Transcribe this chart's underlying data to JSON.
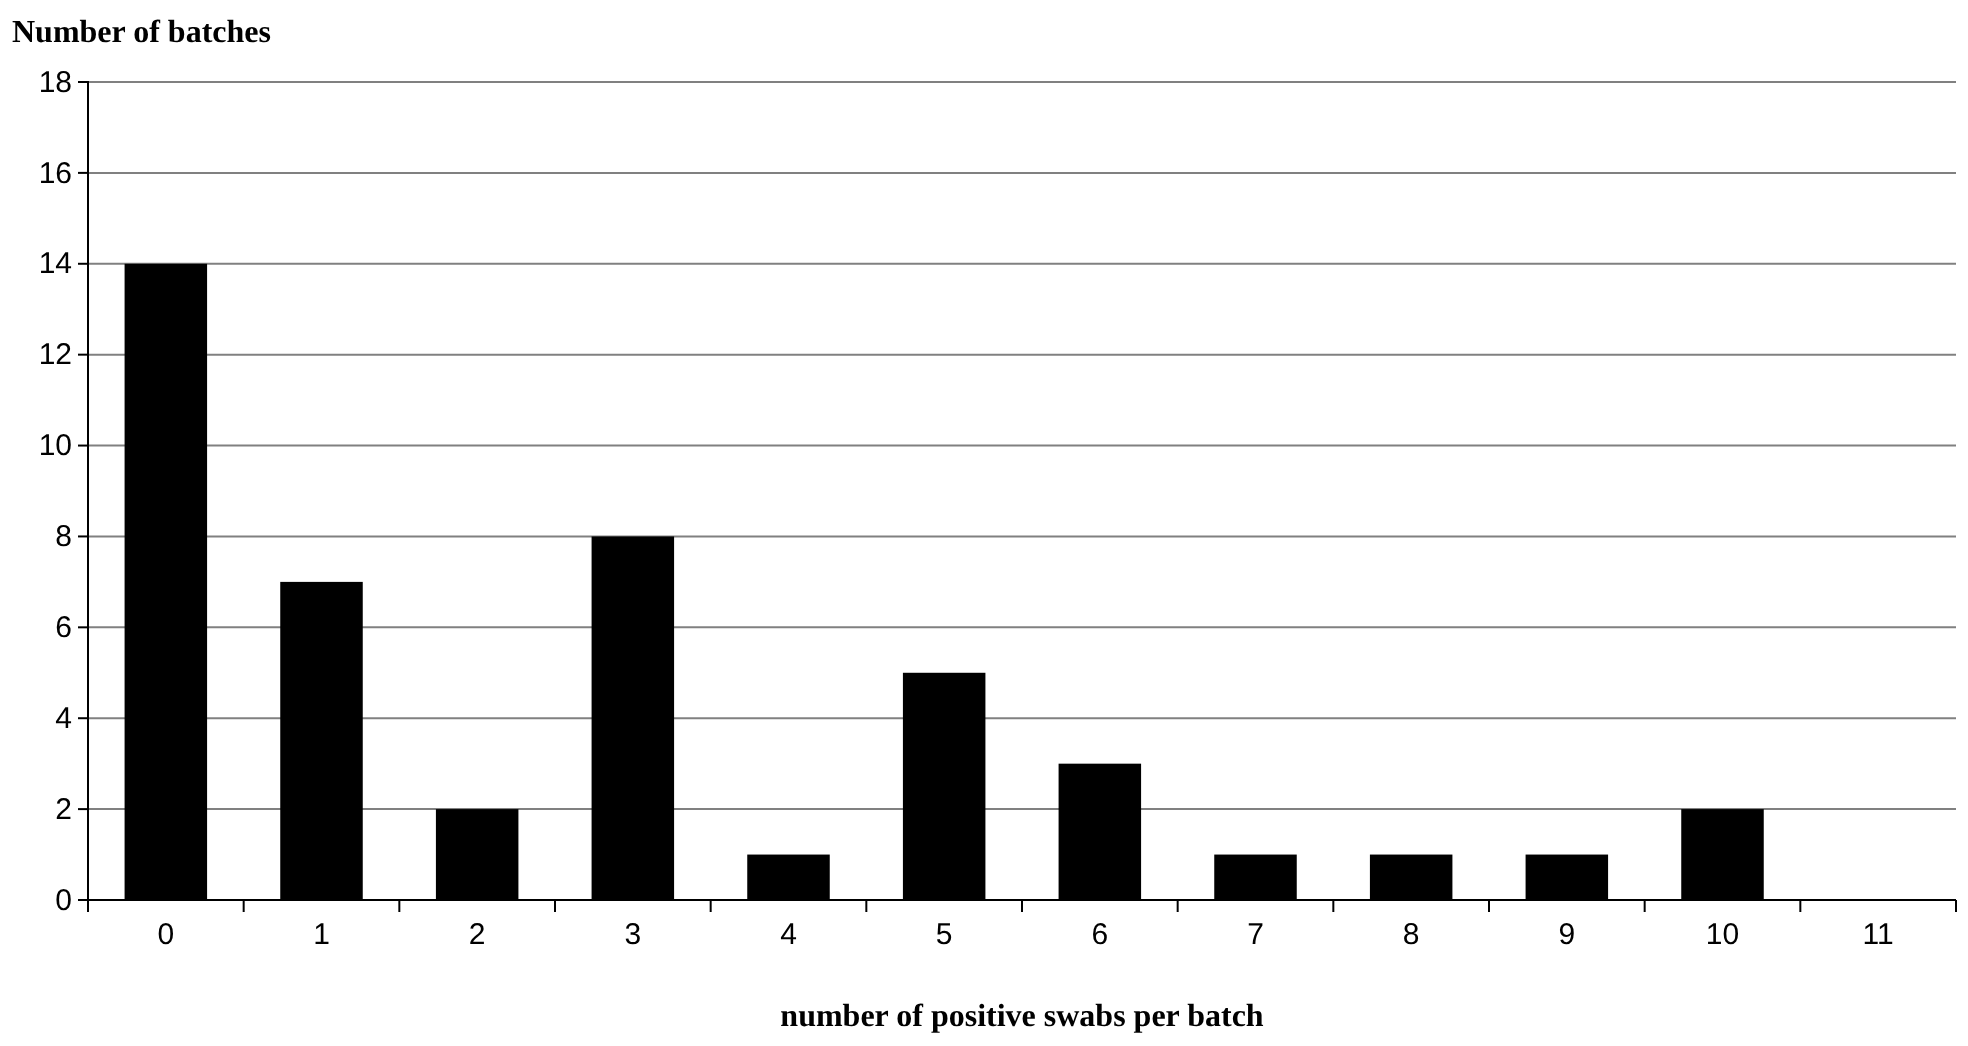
{
  "chart_data": {
    "type": "bar",
    "title": "Number of batches",
    "xlabel": "number of positive swabs per batch",
    "categories": [
      "0",
      "1",
      "2",
      "3",
      "4",
      "5",
      "6",
      "7",
      "8",
      "9",
      "10",
      "11"
    ],
    "values": [
      14,
      7,
      2,
      8,
      1,
      5,
      3,
      1,
      1,
      1,
      2,
      0
    ],
    "color": "#000000",
    "ylim": [
      0,
      18
    ],
    "yticks": [
      0,
      2,
      4,
      6,
      8,
      10,
      12,
      14,
      16,
      18
    ],
    "grid": "y"
  }
}
